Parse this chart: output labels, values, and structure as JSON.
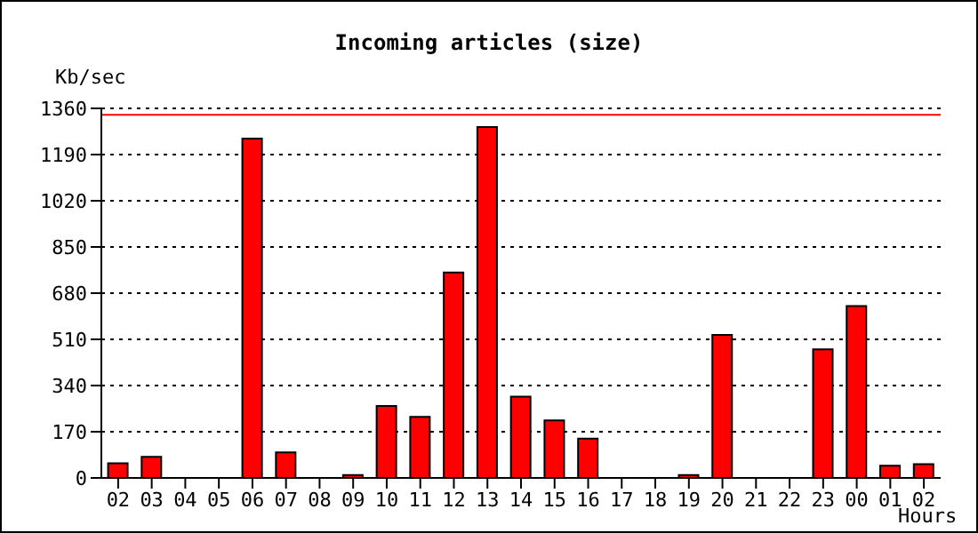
{
  "chart_data": {
    "type": "bar",
    "title": "Incoming articles (size)",
    "ylabel": "Kb/sec",
    "xlabel": "Hours",
    "categories": [
      "02",
      "03",
      "04",
      "05",
      "06",
      "07",
      "08",
      "09",
      "10",
      "11",
      "12",
      "13",
      "14",
      "15",
      "16",
      "17",
      "18",
      "19",
      "20",
      "21",
      "22",
      "23",
      "00",
      "01",
      "02"
    ],
    "series": [
      {
        "color": "#ff0000",
        "values": [
          54,
          78,
          0,
          0,
          1249,
          94,
          0,
          11,
          265,
          225,
          756,
          1291,
          299,
          212,
          145,
          0,
          0,
          11,
          526,
          0,
          0,
          473,
          633,
          45,
          51
        ]
      }
    ],
    "ylim": [
      0,
      1360
    ],
    "yticks": [
      0,
      170,
      340,
      510,
      680,
      850,
      1020,
      1190,
      1360
    ],
    "grid": "y",
    "legend": false,
    "ref_lines": [
      {
        "axis": "y",
        "value": 1336,
        "color": "#ff0000"
      }
    ]
  }
}
